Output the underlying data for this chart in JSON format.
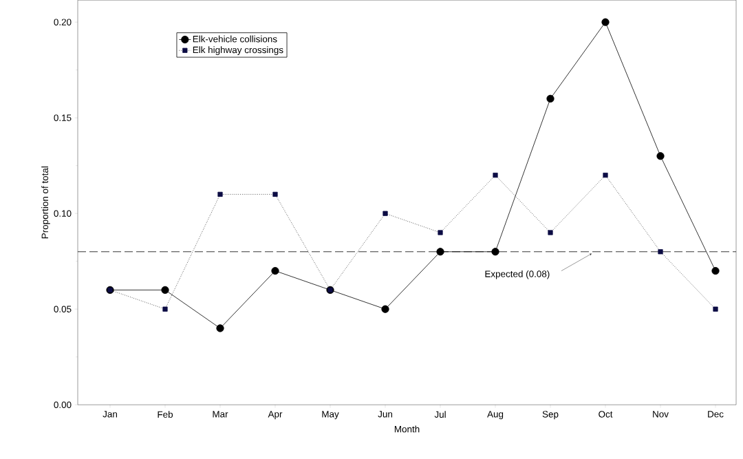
{
  "chart_data": {
    "type": "line",
    "xlabel": "Month",
    "ylabel": "Proportion of total",
    "categories": [
      "Jan",
      "Feb",
      "Mar",
      "Apr",
      "May",
      "Jun",
      "Jul",
      "Aug",
      "Sep",
      "Oct",
      "Nov",
      "Dec"
    ],
    "series": [
      {
        "name": "Elk-vehicle collisions",
        "color": "#000000",
        "marker": "circle",
        "line_style": "solid",
        "values": [
          0.06,
          0.06,
          0.04,
          0.07,
          0.06,
          0.05,
          0.08,
          0.08,
          0.16,
          0.2,
          0.13,
          0.07
        ]
      },
      {
        "name": "Elk highway crossings",
        "color": "#0c0c44",
        "marker": "square",
        "line_style": "dotted",
        "values": [
          0.06,
          0.05,
          0.11,
          0.11,
          0.06,
          0.1,
          0.09,
          0.12,
          0.09,
          0.12,
          0.08,
          0.05
        ]
      }
    ],
    "ylim": [
      0,
      0.2115
    ],
    "yticks": [
      {
        "value": 0,
        "label": "0.00"
      },
      {
        "value": 0.05,
        "label": "0.05"
      },
      {
        "value": 0.1,
        "label": "0.10"
      },
      {
        "value": 0.15,
        "label": "0.15"
      },
      {
        "value": 0.2,
        "label": "0.20"
      }
    ],
    "ref_lines": [
      {
        "axis": "y",
        "value": 0.08,
        "label": "Expected (0.08)",
        "line_style": "dashed",
        "color": "#000000"
      }
    ],
    "legend": "top left",
    "grid": false
  }
}
